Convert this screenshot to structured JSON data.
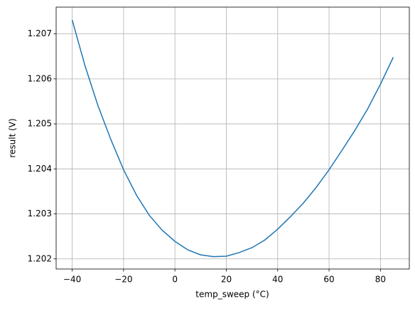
{
  "chart_data": {
    "type": "line",
    "x_label": "temp_sweep (°C)",
    "y_label": "result (V)",
    "x": [
      -40,
      -35,
      -30,
      -25,
      -20,
      -15,
      -10,
      -5,
      0,
      5,
      10,
      15,
      20,
      25,
      30,
      35,
      40,
      45,
      50,
      55,
      60,
      65,
      70,
      75,
      80,
      85
    ],
    "series": [
      {
        "color": "#1f77b4",
        "values": [
          1.20731,
          1.20629,
          1.20541,
          1.20466,
          1.20398,
          1.20342,
          1.20297,
          1.20264,
          1.20239,
          1.2022,
          1.20209,
          1.20205,
          1.20206,
          1.20214,
          1.20225,
          1.20242,
          1.20266,
          1.20294,
          1.20324,
          1.20359,
          1.20398,
          1.20441,
          1.20485,
          1.20533,
          1.20588,
          1.20648
        ]
      }
    ],
    "xlim": [
      -46.25,
      91.25
    ],
    "xticks": [
      {
        "value": -40,
        "label": "−40"
      },
      {
        "value": -20,
        "label": "−20"
      },
      0,
      20,
      40,
      60,
      80
    ],
    "ylim": [
      1.201775,
      1.207595
    ],
    "yticks": [
      1.202,
      1.203,
      1.204,
      1.205,
      1.206,
      1.207
    ],
    "grid": true
  }
}
